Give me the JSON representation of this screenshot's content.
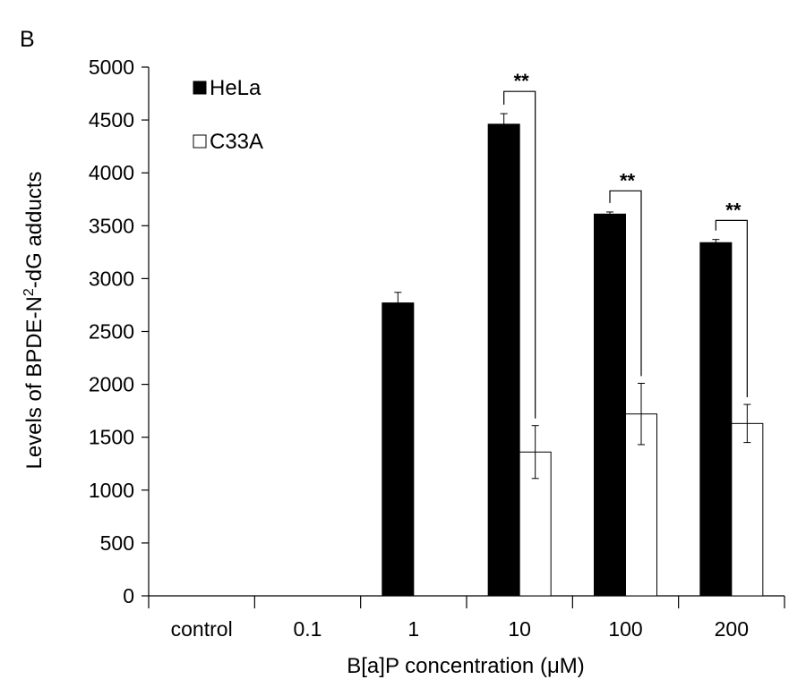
{
  "panel_label": "B",
  "chart_data": {
    "type": "bar",
    "xlabel": "B[a]P concentration (μM)",
    "ylabel_prefix": "Levels of BPDE-N",
    "ylabel_superscript": "2",
    "ylabel_suffix": "-dG adducts",
    "categories": [
      "control",
      "0.1",
      "1",
      "10",
      "100",
      "200"
    ],
    "ylim": [
      0,
      5000
    ],
    "yticks": [
      "0",
      "500",
      "1000",
      "1500",
      "2000",
      "2500",
      "3000",
      "3500",
      "4000",
      "4500",
      "5000"
    ],
    "ytick_values": [
      0,
      500,
      1000,
      1500,
      2000,
      2500,
      3000,
      3500,
      4000,
      4500,
      5000
    ],
    "series": [
      {
        "name": "HeLa",
        "fill": "#000000",
        "values": [
          0,
          0,
          2770,
          4460,
          3610,
          3340
        ],
        "errors": [
          0,
          0,
          100,
          100,
          20,
          30
        ]
      },
      {
        "name": "C33A",
        "fill": "#ffffff",
        "values": [
          0,
          0,
          0,
          1360,
          1720,
          1630
        ],
        "errors": [
          0,
          0,
          0,
          250,
          290,
          180
        ]
      }
    ],
    "significance": [
      {
        "category_index": 3,
        "label": "**",
        "y": 4770
      },
      {
        "category_index": 4,
        "label": "**",
        "y": 3830
      },
      {
        "category_index": 5,
        "label": "**",
        "y": 3550
      }
    ],
    "legend": {
      "position": "top-left",
      "entries": [
        "HeLa",
        "C33A"
      ]
    }
  }
}
